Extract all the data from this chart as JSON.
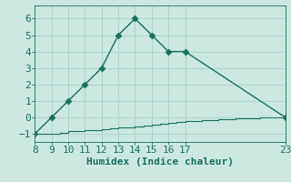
{
  "xlabel": "Humidex (Indice chaleur)",
  "background_color": "#cce8e0",
  "line_color": "#1a7060",
  "grid_color": "#aacfc8",
  "axis_color": "#1a7060",
  "tick_color": "#1a7060",
  "label_color": "#1a7060",
  "xlim": [
    8,
    23
  ],
  "ylim": [
    -1.5,
    6.8
  ],
  "xticks": [
    8,
    9,
    10,
    11,
    12,
    13,
    14,
    15,
    16,
    17,
    23
  ],
  "yticks": [
    -1,
    0,
    1,
    2,
    3,
    4,
    5,
    6
  ],
  "curve1_x": [
    8,
    9,
    10,
    11,
    12,
    13,
    14,
    15,
    16,
    17,
    23
  ],
  "curve1_y": [
    -1,
    0,
    1,
    2,
    3,
    5,
    6,
    5,
    4,
    4,
    0
  ],
  "curve1_markers": [
    0,
    1,
    2,
    3,
    4,
    5,
    6,
    7,
    8,
    9,
    10
  ],
  "curve2_x": [
    8,
    8.5,
    9,
    9.5,
    10,
    10.5,
    11,
    11.5,
    12,
    12.5,
    13,
    13.5,
    14,
    14.5,
    15,
    15.5,
    16,
    16.5,
    17,
    17.5,
    18,
    18.5,
    19,
    19.5,
    20,
    20.5,
    21,
    21.5,
    22,
    22.5,
    23
  ],
  "curve2_y": [
    -1,
    -1,
    -1,
    -0.93,
    -0.86,
    -0.83,
    -0.8,
    -0.76,
    -0.72,
    -0.68,
    -0.64,
    -0.6,
    -0.55,
    -0.5,
    -0.45,
    -0.4,
    -0.35,
    -0.3,
    -0.25,
    -0.22,
    -0.19,
    -0.16,
    -0.13,
    -0.1,
    -0.08,
    -0.06,
    -0.04,
    -0.03,
    -0.02,
    -0.01,
    0
  ],
  "font_family": "monospace",
  "font_size": 8,
  "xlabel_fontsize": 8,
  "marker_size": 3.5,
  "linewidth1": 1.0,
  "linewidth2": 0.8
}
